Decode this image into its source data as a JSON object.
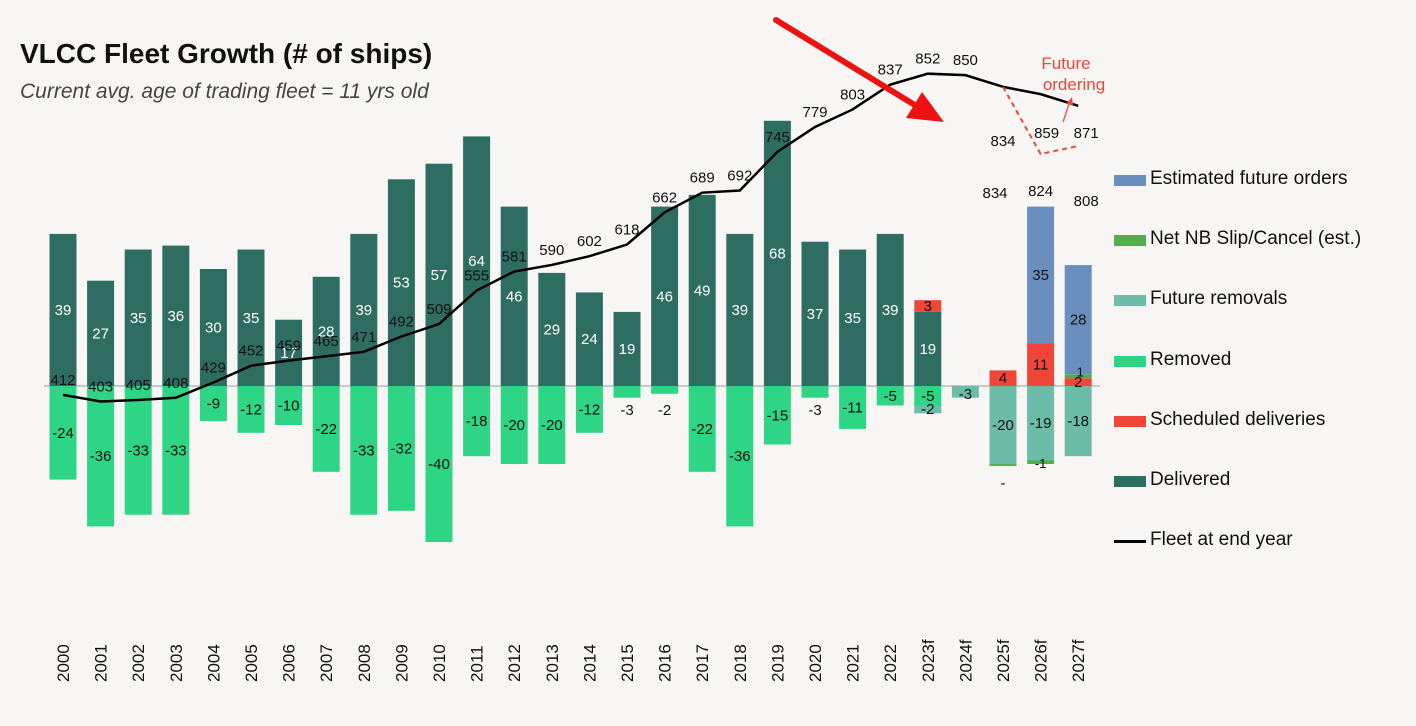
{
  "title": "VLCC Fleet Growth (# of ships)",
  "subtitle": "Current avg. age of trading fleet = 11 yrs old",
  "annotation": "Future\nordering",
  "colors": {
    "delivered": "#2e6e62",
    "scheduled": "#f04637",
    "removed": "#2ed585",
    "future_removals": "#6cbcaa",
    "net_slip": "#55ad4e",
    "future_orders": "#6a8fbe",
    "fleet_line": "#000000",
    "arrow": "#ee1111"
  },
  "legend": [
    {
      "key": "future_orders",
      "label": "Estimated future orders"
    },
    {
      "key": "net_slip",
      "label": "Net NB Slip/Cancel (est.)"
    },
    {
      "key": "future_removals",
      "label": "Future removals"
    },
    {
      "key": "removed",
      "label": "Removed"
    },
    {
      "key": "scheduled",
      "label": "Scheduled deliveries"
    },
    {
      "key": "delivered",
      "label": "Delivered"
    },
    {
      "key": "fleet_line",
      "label": "Fleet at end year",
      "line": true
    }
  ],
  "chart_data": {
    "type": "bar",
    "title": "VLCC Fleet Growth (# of ships)",
    "categories": [
      "2000",
      "2001",
      "2002",
      "2003",
      "2004",
      "2005",
      "2006",
      "2007",
      "2008",
      "2009",
      "2010",
      "2011",
      "2012",
      "2013",
      "2014",
      "2015",
      "2016",
      "2017",
      "2018",
      "2019",
      "2020",
      "2021",
      "2022",
      "2023f",
      "2024f",
      "2025f",
      "2026f",
      "2027f"
    ],
    "series": [
      {
        "name": "Delivered",
        "values": [
          39,
          27,
          35,
          36,
          30,
          35,
          17,
          28,
          39,
          53,
          57,
          64,
          46,
          29,
          24,
          19,
          46,
          49,
          39,
          68,
          37,
          35,
          39,
          19,
          0,
          0,
          0,
          0
        ]
      },
      {
        "name": "Scheduled deliveries",
        "values": [
          0,
          0,
          0,
          0,
          0,
          0,
          0,
          0,
          0,
          0,
          0,
          0,
          0,
          0,
          0,
          0,
          0,
          0,
          0,
          0,
          0,
          0,
          0,
          3,
          0,
          4,
          11,
          2
        ]
      },
      {
        "name": "Net NB Slip/Cancel (est.)",
        "values": [
          0,
          0,
          0,
          0,
          0,
          0,
          0,
          0,
          0,
          0,
          0,
          0,
          0,
          0,
          0,
          0,
          0,
          0,
          0,
          0,
          0,
          0,
          0,
          0,
          0,
          0,
          0,
          1
        ]
      },
      {
        "name": "Estimated future orders",
        "values": [
          0,
          0,
          0,
          0,
          0,
          0,
          0,
          0,
          0,
          0,
          0,
          0,
          0,
          0,
          0,
          0,
          0,
          0,
          0,
          0,
          0,
          0,
          0,
          0,
          0,
          0,
          35,
          28
        ]
      },
      {
        "name": "Removed",
        "values": [
          -24,
          -36,
          -33,
          -33,
          -9,
          -12,
          -10,
          -22,
          -33,
          -32,
          -40,
          -18,
          -20,
          -20,
          -12,
          -3,
          -2,
          -22,
          -36,
          -15,
          -3,
          -11,
          -5,
          -5,
          0,
          0,
          0,
          0
        ]
      },
      {
        "name": "Future removals",
        "values": [
          0,
          0,
          0,
          0,
          0,
          0,
          0,
          0,
          0,
          0,
          0,
          0,
          0,
          0,
          0,
          0,
          0,
          0,
          0,
          0,
          0,
          0,
          0,
          -2,
          -3,
          -20,
          -19,
          -18
        ]
      },
      {
        "name": "Net NB Slip/Cancel (est.) (negative)",
        "values": [
          0,
          0,
          0,
          0,
          0,
          0,
          0,
          0,
          0,
          0,
          0,
          0,
          0,
          0,
          0,
          0,
          0,
          0,
          0,
          0,
          0,
          0,
          0,
          0,
          0,
          -0.5,
          -1,
          0
        ]
      },
      {
        "name": "Fleet at end year",
        "values": [
          412,
          403,
          405,
          408,
          429,
          452,
          459,
          465,
          471,
          492,
          509,
          555,
          581,
          590,
          602,
          618,
          662,
          689,
          692,
          745,
          779,
          803,
          837,
          852,
          850,
          834,
          824,
          808
        ]
      },
      {
        "name": "Future ordering",
        "x": [
          "2025f",
          "2026f",
          "2027f"
        ],
        "values": [
          834,
          859,
          871
        ]
      }
    ],
    "fleet_labels": [
      "412",
      "403",
      "405",
      "408",
      "429",
      "452",
      "459",
      "465",
      "471",
      "492",
      "509",
      "555",
      "581",
      "590",
      "602",
      "618",
      "662",
      "689",
      "692",
      "745",
      "779",
      "803",
      "837",
      "852",
      "850",
      "834",
      "824",
      "808"
    ],
    "fleet_label_2025f_lower": "834",
    "future_labels": [
      "834",
      "859",
      "871"
    ],
    "slip_2025f_label": "-",
    "ylim_bars": [
      -45,
      70
    ],
    "ylim_line": [
      380,
      880
    ],
    "grid": false,
    "legend_position": "right"
  }
}
